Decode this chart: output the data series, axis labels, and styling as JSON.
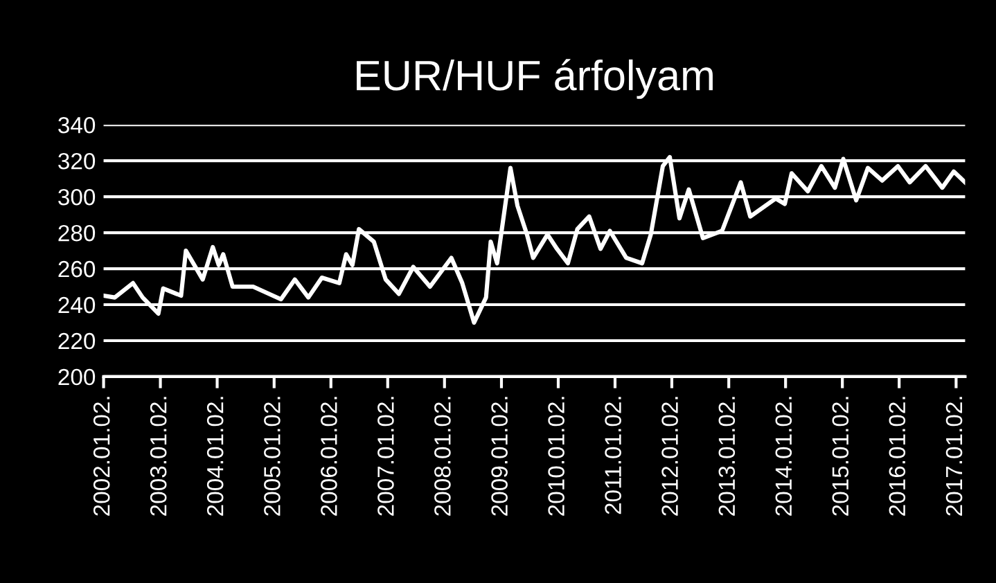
{
  "chart_data": {
    "type": "line",
    "title": "EUR/HUF árfolyam",
    "x": [
      "2002-01-02",
      "2002-03-15",
      "2002-07-10",
      "2002-09-10",
      "2002-12-20",
      "2003-01-20",
      "2003-05-15",
      "2003-06-15",
      "2003-10-01",
      "2003-12-05",
      "2004-01-12",
      "2004-02-10",
      "2004-04-10",
      "2004-08-20",
      "2005-02-15",
      "2005-05-15",
      "2005-08-10",
      "2005-11-05",
      "2006-02-25",
      "2006-04-10",
      "2006-05-20",
      "2006-07-01",
      "2006-10-05",
      "2006-12-20",
      "2007-03-15",
      "2007-06-15",
      "2007-10-01",
      "2008-02-15",
      "2008-04-25",
      "2008-07-10",
      "2008-09-25",
      "2008-10-25",
      "2008-12-05",
      "2009-03-01",
      "2009-04-15",
      "2009-06-15",
      "2009-07-25",
      "2009-10-25",
      "2009-12-25",
      "2010-03-05",
      "2010-05-05",
      "2010-07-20",
      "2010-10-01",
      "2010-11-30",
      "2011-03-15",
      "2011-06-25",
      "2011-08-20",
      "2011-11-05",
      "2011-12-20",
      "2012-02-20",
      "2012-04-20",
      "2012-07-20",
      "2012-11-20",
      "2013-03-20",
      "2013-05-20",
      "2013-10-30",
      "2013-12-28",
      "2014-02-10",
      "2014-05-25",
      "2014-08-20",
      "2014-11-15",
      "2015-01-08",
      "2015-04-01",
      "2015-06-15",
      "2015-09-15",
      "2015-12-25",
      "2016-03-10",
      "2016-06-20",
      "2016-10-05",
      "2016-12-18",
      "2017-03-01"
    ],
    "series": [
      {
        "color": "#ffffff",
        "values": [
          245,
          244,
          252,
          244,
          235,
          249,
          245,
          270,
          254,
          272,
          262,
          268,
          250,
          250,
          243,
          254,
          244,
          255,
          252,
          268,
          262,
          282,
          275,
          254,
          246,
          261,
          250,
          266,
          252,
          230,
          244,
          275,
          263,
          316,
          295,
          279,
          266,
          279,
          271,
          263,
          282,
          289,
          271,
          281,
          266,
          263,
          279,
          317,
          322,
          288,
          304,
          277,
          281,
          308,
          289,
          299,
          296,
          313,
          303,
          317,
          305,
          321,
          298,
          316,
          309,
          317,
          308,
          317,
          305,
          314,
          308
        ]
      }
    ],
    "xlim": [
      "2002-01-02",
      "2017-03-01"
    ],
    "xticks": [
      {
        "value": "2002-01-02",
        "label": "2002.01.02."
      },
      {
        "value": "2003-01-02",
        "label": "2003.01.02."
      },
      {
        "value": "2004-01-02",
        "label": "2004.01.02."
      },
      {
        "value": "2005-01-02",
        "label": "2005.01.02."
      },
      {
        "value": "2006-01-02",
        "label": "2006.01.02."
      },
      {
        "value": "2007-01-02",
        "label": "2007.01.02."
      },
      {
        "value": "2008-01-02",
        "label": "2008.01.02."
      },
      {
        "value": "2009-01-02",
        "label": "2009.01.02."
      },
      {
        "value": "2010-01-02",
        "label": "2010.01.02."
      },
      {
        "value": "2011-01-02",
        "label": "2011.01.02."
      },
      {
        "value": "2012-01-02",
        "label": "2012.01.02."
      },
      {
        "value": "2013-01-02",
        "label": "2013.01.02."
      },
      {
        "value": "2014-01-02",
        "label": "2014.01.02."
      },
      {
        "value": "2015-01-02",
        "label": "2015.01.02."
      },
      {
        "value": "2016-01-02",
        "label": "2016.01.02."
      },
      {
        "value": "2017-01-02",
        "label": "2017.01.02."
      }
    ],
    "ylim": [
      200,
      340
    ],
    "yticks": [
      200,
      220,
      240,
      260,
      280,
      300,
      320,
      340
    ],
    "grid": "y",
    "marker": "none",
    "line_style": "solid"
  }
}
